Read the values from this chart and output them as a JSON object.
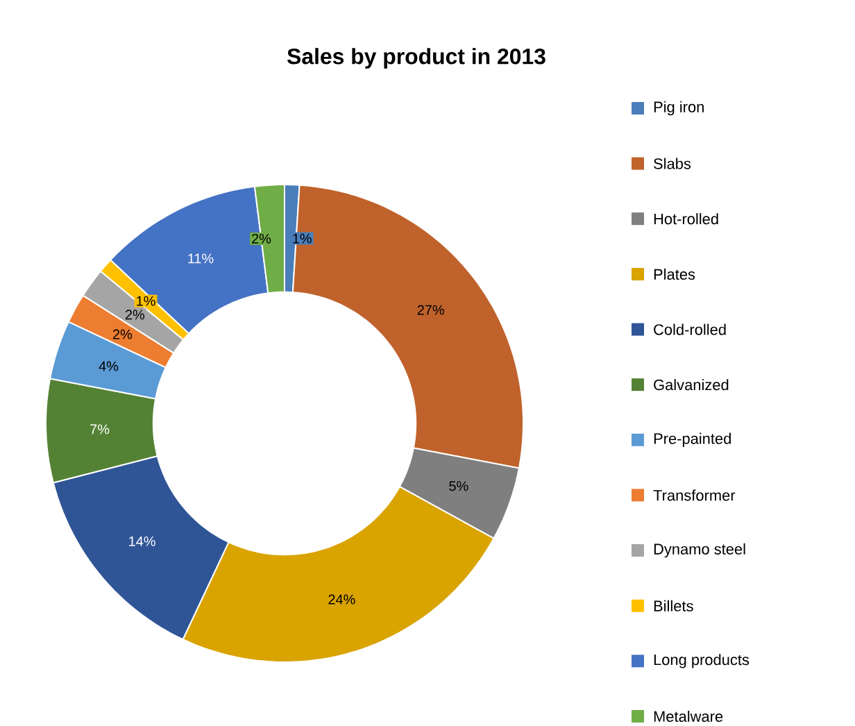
{
  "chart_data": {
    "type": "donut",
    "title": "Sales by product in 2013",
    "categories": [
      "Pig iron",
      "Slabs",
      "Hot-rolled",
      "Plates",
      "Cold-rolled",
      "Galvanized",
      "Pre-painted",
      "Transformer",
      "Dynamo steel",
      "Billets",
      "Long products",
      "Metalware"
    ],
    "values": [
      1,
      27,
      5,
      24,
      14,
      7,
      4,
      2,
      2,
      1,
      11,
      2
    ],
    "value_labels": [
      "1%",
      "27%",
      "5%",
      "24%",
      "14%",
      "7%",
      "4%",
      "2%",
      "2%",
      "1%",
      "11%",
      "2%"
    ],
    "colors": [
      "#4a7ebb",
      "#c0622b",
      "#7f7f7f",
      "#d9a300",
      "#2f5597",
      "#548235",
      "#5b9bd5",
      "#ed7d31",
      "#a5a5a5",
      "#ffc000",
      "#4472c4",
      "#70ad47"
    ],
    "legend": "right"
  }
}
